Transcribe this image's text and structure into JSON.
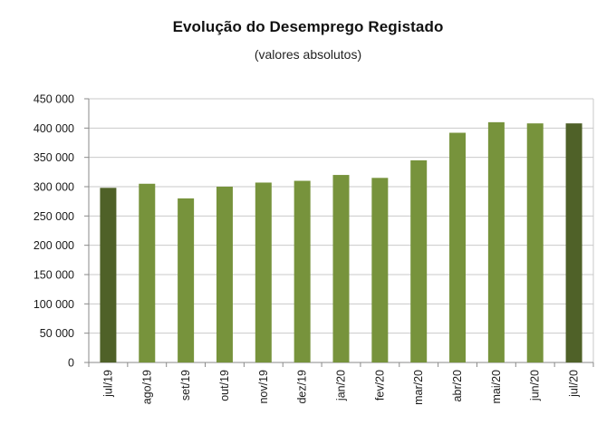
{
  "chart_data": {
    "type": "bar",
    "title": "Evolução do Desemprego Registado",
    "subtitle": "(valores absolutos)",
    "xlabel": "",
    "ylabel": "",
    "ylim": [
      0,
      450000
    ],
    "yticks": [
      0,
      50000,
      100000,
      150000,
      200000,
      250000,
      300000,
      350000,
      400000,
      450000
    ],
    "ytick_labels": [
      "0",
      "50 000",
      "100 000",
      "150 000",
      "200 000",
      "250 000",
      "300 000",
      "350 000",
      "400 000",
      "450 000"
    ],
    "grid": true,
    "categories": [
      "jul/19",
      "ago/19",
      "set/19",
      "out/19",
      "nov/19",
      "dez/19",
      "jan/20",
      "fev/20",
      "mar/20",
      "abr/20",
      "mai/20",
      "jun/20",
      "jul/20"
    ],
    "values": [
      298000,
      305000,
      280000,
      300000,
      307000,
      310000,
      320000,
      315000,
      345000,
      392000,
      410000,
      408000,
      408000
    ],
    "colors": [
      "#4f6128",
      "#77933c",
      "#77933c",
      "#77933c",
      "#77933c",
      "#77933c",
      "#77933c",
      "#77933c",
      "#77933c",
      "#77933c",
      "#77933c",
      "#77933c",
      "#4f6128"
    ]
  }
}
